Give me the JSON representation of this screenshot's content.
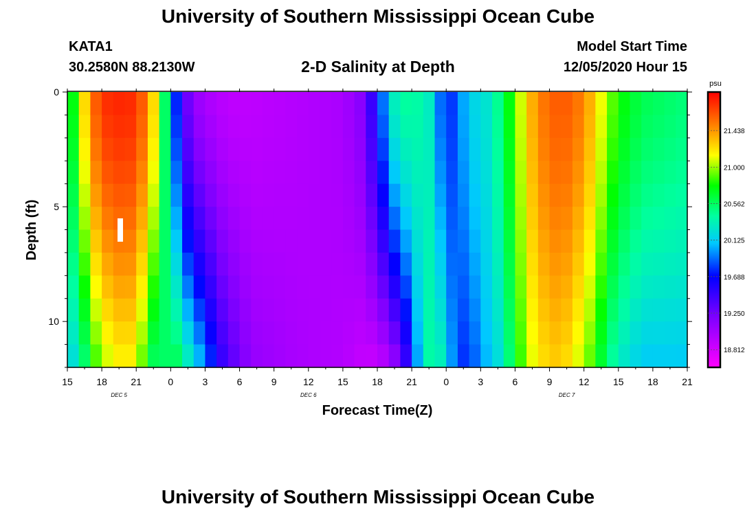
{
  "header": {
    "title_top": "University of Southern Mississippi Ocean Cube",
    "station_id": "KATA1",
    "station_coords": "30.2580N 88.2130W",
    "plot_title": "2-D Salinity at Depth",
    "model_start_label": "Model Start Time",
    "model_start_value": "12/05/2020 Hour 15",
    "title_bottom": "University of Southern Mississippi Ocean Cube"
  },
  "chart_data": {
    "type": "heatmap",
    "title": "2-D Salinity at Depth",
    "xlabel": "Forecast Time(Z)",
    "ylabel": "Depth (ft)",
    "x_hours_range": [
      0,
      54
    ],
    "x_tick_labels": [
      "15",
      "18",
      "21",
      "0",
      "3",
      "6",
      "9",
      "12",
      "15",
      "18",
      "21",
      "0",
      "3",
      "6",
      "9",
      "12",
      "15",
      "18",
      "21"
    ],
    "x_date_labels": [
      {
        "label": "DEC 5",
        "hour": 4.5
      },
      {
        "label": "DEC 6",
        "hour": 21
      },
      {
        "label": "DEC 7",
        "hour": 43.5
      }
    ],
    "y_range": [
      0,
      12
    ],
    "y_ticks": [
      0,
      5,
      10
    ],
    "y_minor_step": 1,
    "colorbar": {
      "unit": "psu",
      "min": 18.6,
      "max": 21.9,
      "tick_values": [
        21.438,
        21.0,
        20.562,
        20.125,
        19.688,
        19.25,
        18.812
      ],
      "tick_labels": [
        "21.438",
        "21.000",
        "20.562",
        "20.125",
        "19.688",
        "19.250",
        "18.812"
      ]
    },
    "grid": {
      "nx": 54,
      "ny": 12
    },
    "salinity_keyframes": [
      {
        "hour": 0,
        "surface": 20.5,
        "bottom": 20.1
      },
      {
        "hour": 1,
        "surface": 21.0,
        "bottom": 20.3
      },
      {
        "hour": 2,
        "surface": 21.5,
        "bottom": 20.7
      },
      {
        "hour": 3,
        "surface": 21.75,
        "bottom": 21.0
      },
      {
        "hour": 5,
        "surface": 21.8,
        "bottom": 21.2
      },
      {
        "hour": 6,
        "surface": 21.75,
        "bottom": 21.1
      },
      {
        "hour": 7,
        "surface": 21.5,
        "bottom": 20.7
      },
      {
        "hour": 8,
        "surface": 21.0,
        "bottom": 20.4
      },
      {
        "hour": 9,
        "surface": 20.1,
        "bottom": 20.7
      },
      {
        "hour": 10,
        "surface": 19.4,
        "bottom": 20.5
      },
      {
        "hour": 11,
        "surface": 19.1,
        "bottom": 20.2
      },
      {
        "hour": 12,
        "surface": 19.0,
        "bottom": 20.0
      },
      {
        "hour": 13,
        "surface": 18.95,
        "bottom": 19.6
      },
      {
        "hour": 14,
        "surface": 18.9,
        "bottom": 19.4
      },
      {
        "hour": 16,
        "surface": 18.9,
        "bottom": 19.1
      },
      {
        "hour": 20,
        "surface": 18.95,
        "bottom": 19.0
      },
      {
        "hour": 24,
        "surface": 19.0,
        "bottom": 18.95
      },
      {
        "hour": 26,
        "surface": 19.2,
        "bottom": 18.85
      },
      {
        "hour": 27,
        "surface": 19.75,
        "bottom": 18.85
      },
      {
        "hour": 28,
        "surface": 20.1,
        "bottom": 18.95
      },
      {
        "hour": 29,
        "surface": 20.55,
        "bottom": 19.2
      },
      {
        "hour": 30,
        "surface": 20.3,
        "bottom": 19.7
      },
      {
        "hour": 31,
        "surface": 20.5,
        "bottom": 20.3
      },
      {
        "hour": 32,
        "surface": 20.1,
        "bottom": 20.5
      },
      {
        "hour": 33,
        "surface": 19.7,
        "bottom": 20.2
      },
      {
        "hour": 34,
        "surface": 19.9,
        "bottom": 19.8
      },
      {
        "hour": 35,
        "surface": 20.15,
        "bottom": 19.75
      },
      {
        "hour": 36,
        "surface": 20.2,
        "bottom": 20.0
      },
      {
        "hour": 37,
        "surface": 20.3,
        "bottom": 20.1
      },
      {
        "hour": 38,
        "surface": 20.6,
        "bottom": 20.3
      },
      {
        "hour": 39,
        "surface": 20.9,
        "bottom": 20.7
      },
      {
        "hour": 40,
        "surface": 21.25,
        "bottom": 21.0
      },
      {
        "hour": 41,
        "surface": 21.5,
        "bottom": 21.2
      },
      {
        "hour": 43,
        "surface": 21.65,
        "bottom": 21.3
      },
      {
        "hour": 45,
        "surface": 21.5,
        "bottom": 21.0
      },
      {
        "hour": 46,
        "surface": 21.25,
        "bottom": 20.8
      },
      {
        "hour": 47,
        "surface": 21.0,
        "bottom": 20.5
      },
      {
        "hour": 48,
        "surface": 20.8,
        "bottom": 20.3
      },
      {
        "hour": 50,
        "surface": 20.6,
        "bottom": 20.1
      },
      {
        "hour": 54,
        "surface": 20.5,
        "bottom": 20.1
      }
    ]
  }
}
